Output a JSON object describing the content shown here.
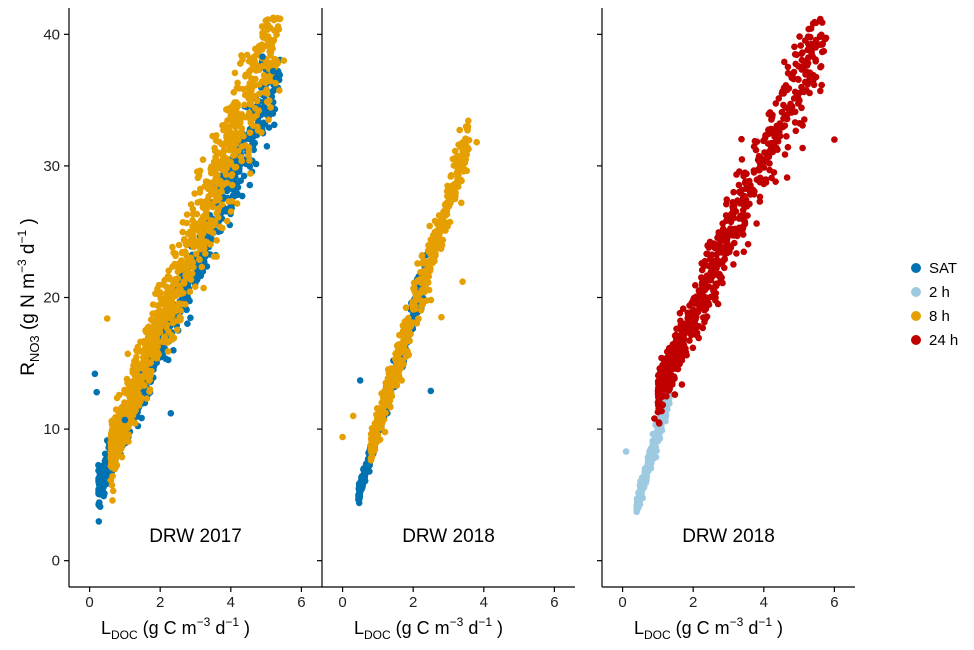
{
  "chart_data": {
    "type": "scatter",
    "ylabel": {
      "main": "R",
      "sub": "NO3",
      "rest": " (g N  m",
      "sup1": "−3",
      "mid": "  d",
      "sup2": "−1",
      "end": " )"
    },
    "xlabel": {
      "main": "L",
      "sub": "DOC",
      "rest": " (g C  m",
      "sup1": "−3",
      "mid": "  d",
      "sup2": "−1",
      "end": " )"
    },
    "xlim": [
      -0.3,
      6.3
    ],
    "ylim": [
      -2,
      42
    ],
    "xticks": [
      "0",
      "2",
      "4",
      "6"
    ],
    "xtick_values": [
      0,
      2,
      4,
      6
    ],
    "yticks": [
      "0",
      "10",
      "20",
      "30",
      "40"
    ],
    "ytick_values": [
      0,
      10,
      20,
      30,
      40
    ],
    "legend": {
      "placement": "right",
      "entries": [
        {
          "label": "SAT",
          "color": "#0072B2"
        },
        {
          "label": "2 h",
          "color": "#9ECAE1"
        },
        {
          "label": "8 h",
          "color": "#E69F00"
        },
        {
          "label": "24 h",
          "color": "#C00000"
        }
      ]
    },
    "panels": [
      {
        "title": "DRW 2017",
        "series": [
          {
            "key": "SAT",
            "color": "#0072B2",
            "n": 650,
            "x_range": [
              0.25,
              5.4
            ],
            "slope": 6.2,
            "intercept": 3.8,
            "noise": 1.4
          },
          {
            "key": "8 h",
            "color": "#E69F00",
            "n": 950,
            "x_range": [
              0.6,
              5.4
            ],
            "slope": 6.8,
            "intercept": 4.2,
            "noise": 2.4
          }
        ],
        "extra_points": [
          {
            "x": 0.15,
            "y": 14.2,
            "s": "SAT"
          },
          {
            "x": 0.2,
            "y": 12.8,
            "s": "SAT"
          },
          {
            "x": 0.3,
            "y": 4.1,
            "s": "SAT"
          },
          {
            "x": 4.9,
            "y": 38.3,
            "s": "SAT"
          },
          {
            "x": 5.2,
            "y": 37.2,
            "s": "SAT"
          },
          {
            "x": 4.3,
            "y": 38.4,
            "s": "8 h"
          },
          {
            "x": 5.5,
            "y": 38.0,
            "s": "8 h"
          },
          {
            "x": 0.5,
            "y": 18.4,
            "s": "8 h"
          },
          {
            "x": 2.3,
            "y": 11.2,
            "s": "SAT"
          },
          {
            "x": 1.0,
            "y": 10.7,
            "s": "SAT"
          }
        ]
      },
      {
        "title": "DRW 2018",
        "series": [
          {
            "key": "SAT",
            "color": "#0072B2",
            "n": 320,
            "x_range": [
              0.45,
              2.4
            ],
            "slope": 8.8,
            "intercept": 1.1,
            "noise": 0.7
          },
          {
            "key": "8 h",
            "color": "#E69F00",
            "n": 520,
            "x_range": [
              0.8,
              3.6
            ],
            "slope": 8.4,
            "intercept": 2.0,
            "noise": 1.2
          }
        ],
        "extra_points": [
          {
            "x": 0.0,
            "y": 9.4,
            "s": "8 h"
          },
          {
            "x": 0.3,
            "y": 11.0,
            "s": "8 h"
          },
          {
            "x": 3.8,
            "y": 31.8,
            "s": "8 h"
          },
          {
            "x": 3.4,
            "y": 21.2,
            "s": "8 h"
          },
          {
            "x": 0.5,
            "y": 13.7,
            "s": "SAT"
          },
          {
            "x": 2.5,
            "y": 12.9,
            "s": "SAT"
          },
          {
            "x": 3.1,
            "y": 28.1,
            "s": "8 h"
          },
          {
            "x": 2.8,
            "y": 18.5,
            "s": "8 h"
          }
        ]
      },
      {
        "title": "DRW 2018",
        "series": [
          {
            "key": "2 h",
            "color": "#9ECAE1",
            "n": 300,
            "x_range": [
              0.4,
              1.35
            ],
            "slope": 9.5,
            "intercept": 0.3,
            "noise": 0.6
          },
          {
            "key": "24 h",
            "color": "#C00000",
            "n": 700,
            "x_range": [
              1.0,
              5.8
            ],
            "slope": 6.0,
            "intercept": 6.5,
            "noise": 2.0
          }
        ],
        "extra_points": [
          {
            "x": 0.1,
            "y": 8.3,
            "s": "2 h"
          },
          {
            "x": 5.4,
            "y": 36.9,
            "s": "24 h"
          },
          {
            "x": 6.0,
            "y": 32.0,
            "s": "24 h"
          },
          {
            "x": 5.6,
            "y": 35.7,
            "s": "24 h"
          },
          {
            "x": 0.9,
            "y": 10.8,
            "s": "24 h"
          }
        ]
      }
    ]
  }
}
